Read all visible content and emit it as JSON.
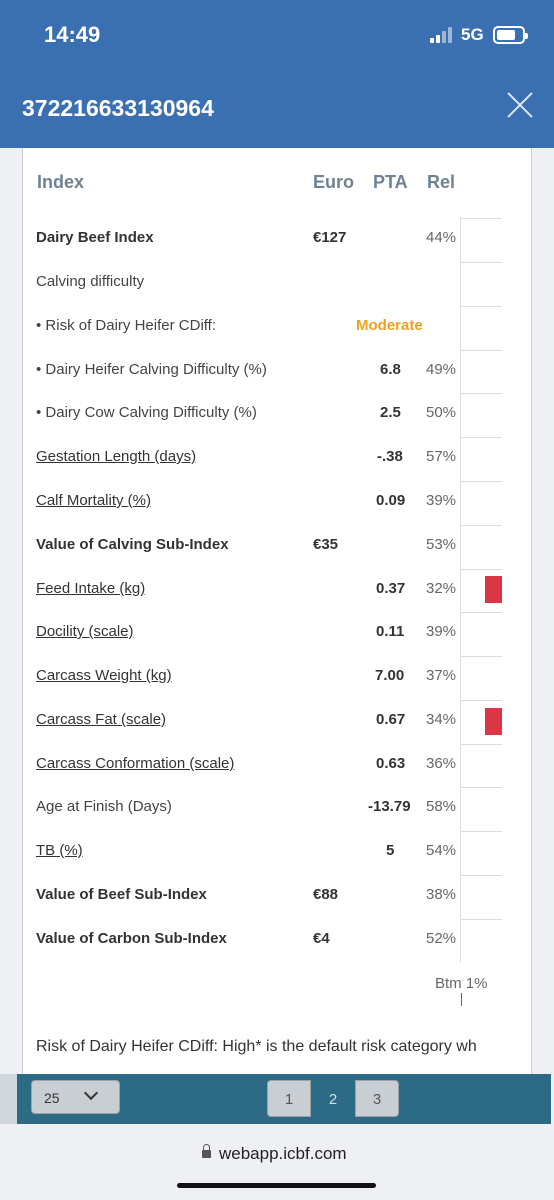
{
  "status_bar": {
    "time": "14:49",
    "network": "5G"
  },
  "header": {
    "title": "372216633130964"
  },
  "table": {
    "headers": {
      "index": "Index",
      "euro": "Euro",
      "pta": "PTA",
      "rel": "Rel"
    },
    "rows": [
      {
        "label": "Dairy Beef Index",
        "euro": "€127",
        "pta": "",
        "rel": "44%"
      },
      {
        "label": "Calving difficulty",
        "euro": "",
        "pta": "",
        "rel": ""
      },
      {
        "label": "• Risk of Dairy Heifer CDiff:",
        "euro": "",
        "pta": "Moderate",
        "rel": ""
      },
      {
        "label": "• Dairy Heifer Calving Difficulty (%)",
        "euro": "",
        "pta": "6.8",
        "rel": "49%"
      },
      {
        "label": "• Dairy Cow Calving Difficulty (%)",
        "euro": "",
        "pta": "2.5",
        "rel": "50%"
      },
      {
        "label": "Gestation Length (days)",
        "euro": "",
        "pta": "-.38",
        "rel": "57%"
      },
      {
        "label": "Calf Mortality (%)",
        "euro": "",
        "pta": "0.09",
        "rel": "39%"
      },
      {
        "label": "Value of Calving Sub-Index",
        "euro": "€35",
        "pta": "",
        "rel": "53%"
      },
      {
        "label": "Feed Intake (kg)",
        "euro": "",
        "pta": "0.37",
        "rel": "32%"
      },
      {
        "label": "Docility (scale)",
        "euro": "",
        "pta": "0.11",
        "rel": "39%"
      },
      {
        "label": "Carcass Weight (kg)",
        "euro": "",
        "pta": "7.00",
        "rel": "37%"
      },
      {
        "label": "Carcass Fat (scale)",
        "euro": "",
        "pta": "0.67",
        "rel": "34%"
      },
      {
        "label": "Carcass Conformation (scale)",
        "euro": "",
        "pta": "0.63",
        "rel": "36%"
      },
      {
        "label": "Age at Finish (Days)",
        "euro": "",
        "pta": "-13.79",
        "rel": "58%"
      },
      {
        "label": "TB (%)",
        "euro": "",
        "pta": "5",
        "rel": "54%"
      },
      {
        "label": "Value of Beef Sub-Index",
        "euro": "€88",
        "pta": "",
        "rel": "38%"
      },
      {
        "label": "Value of Carbon Sub-Index",
        "euro": "€4",
        "pta": "",
        "rel": "52%"
      }
    ],
    "bar_axis_label": "Btm 1%"
  },
  "note": "Risk of Dairy Heifer CDiff: High* is the default risk category wh",
  "pagination": {
    "page_size": "25",
    "pages": [
      "1",
      "2",
      "3"
    ],
    "current_page": "2"
  },
  "browser": {
    "url": "webapp.icbf.com"
  },
  "colors": {
    "header_bg": "#3a6fb1",
    "pager_bg": "#2d6a86",
    "bar_red": "#dc3545",
    "moderate": "#f0a020"
  }
}
